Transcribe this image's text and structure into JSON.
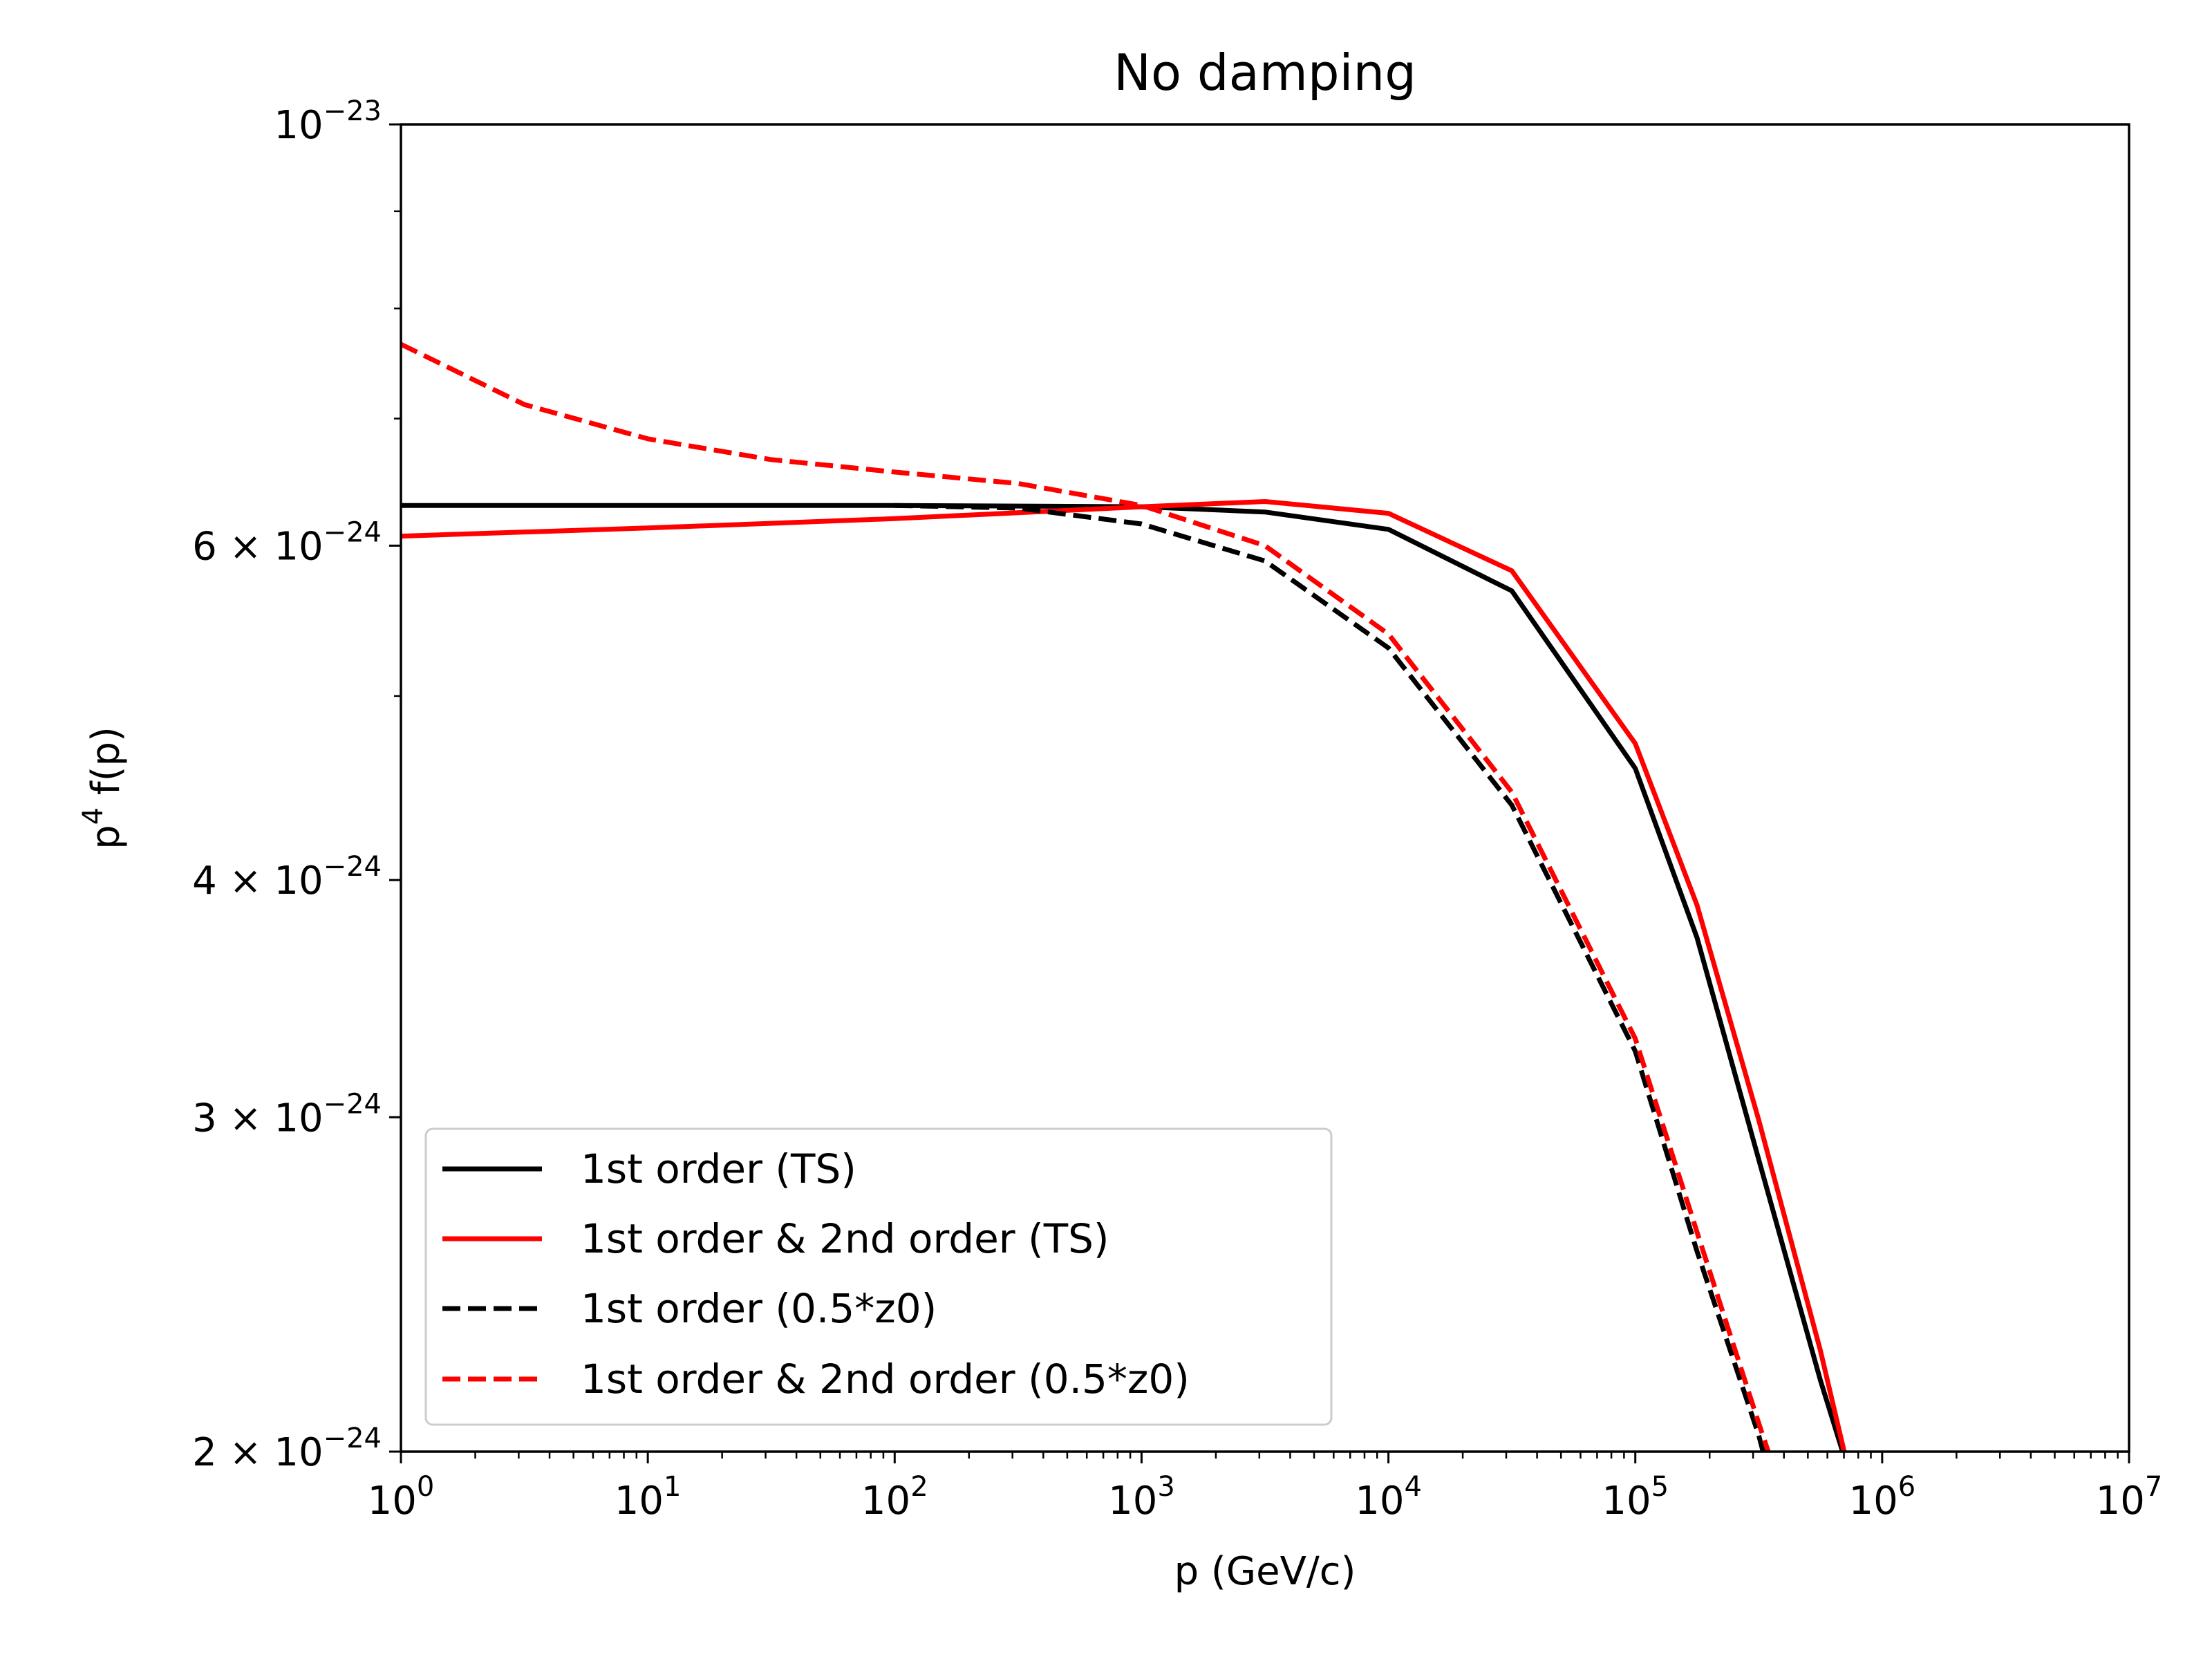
{
  "chart_data": {
    "type": "line",
    "title": "No damping",
    "xlabel": "p (GeV/c)",
    "ylabel_base": "p",
    "ylabel_sup": "4",
    "ylabel_rest": " f(p)",
    "xscale": "log",
    "yscale": "log",
    "xlim": [
      1,
      10000000
    ],
    "ylim": [
      2e-24,
      1e-23
    ],
    "grid": false,
    "legend_position": "lower-left",
    "x_ticks": [
      {
        "value": 1,
        "base": "10",
        "exp": "0"
      },
      {
        "value": 10,
        "base": "10",
        "exp": "1"
      },
      {
        "value": 100,
        "base": "10",
        "exp": "2"
      },
      {
        "value": 1000,
        "base": "10",
        "exp": "3"
      },
      {
        "value": 10000,
        "base": "10",
        "exp": "4"
      },
      {
        "value": 100000,
        "base": "10",
        "exp": "5"
      },
      {
        "value": 1000000,
        "base": "10",
        "exp": "6"
      },
      {
        "value": 10000000,
        "base": "10",
        "exp": "7"
      }
    ],
    "y_ticks": [
      {
        "value": 1e-23,
        "mant": "",
        "base": "10",
        "exp": "−23"
      },
      {
        "value": 6e-24,
        "mant": "6 × ",
        "base": "10",
        "exp": "−24"
      },
      {
        "value": 4e-24,
        "mant": "4 × ",
        "base": "10",
        "exp": "−24"
      },
      {
        "value": 3e-24,
        "mant": "3 × ",
        "base": "10",
        "exp": "−24"
      },
      {
        "value": 2e-24,
        "mant": "2 × ",
        "base": "10",
        "exp": "−24"
      }
    ],
    "y_minor_ticks": [
      5e-24,
      7e-24,
      8e-24,
      9e-24
    ],
    "series": [
      {
        "name": "1st order (TS)",
        "color": "#000000",
        "dash": "solid",
        "x": [
          1,
          100,
          1000,
          3162,
          10000,
          31623,
          100000,
          177828,
          316228,
          562341,
          707946
        ],
        "y": [
          6.3e-24,
          6.3e-24,
          6.29e-24,
          6.25e-24,
          6.12e-24,
          5.68e-24,
          4.58e-24,
          3.73e-24,
          2.85e-24,
          2.18e-24,
          1.98e-24
        ]
      },
      {
        "name": "1st order & 2nd order (TS)",
        "color": "#ff0000",
        "dash": "solid",
        "x": [
          1,
          10,
          100,
          1000,
          3162,
          10000,
          31623,
          100000,
          177828,
          316228,
          562341,
          707946
        ],
        "y": [
          6.07e-24,
          6.13e-24,
          6.2e-24,
          6.29e-24,
          6.33e-24,
          6.24e-24,
          5.82e-24,
          4.72e-24,
          3.88e-24,
          2.99e-24,
          2.26e-24,
          1.99e-24
        ]
      },
      {
        "name": "1st order (0.5*z0)",
        "color": "#000000",
        "dash": "dashed",
        "x": [
          100,
          316,
          1000,
          3162,
          10000,
          31623,
          100000,
          177828,
          316228,
          336000
        ],
        "y": [
          6.3e-24,
          6.28e-24,
          6.16e-24,
          5.89e-24,
          5.3e-24,
          4.38e-24,
          3.25e-24,
          2.55e-24,
          2.04e-24,
          1.98e-24
        ]
      },
      {
        "name": "1st order & 2nd order (0.5*z0)",
        "color": "#ff0000",
        "dash": "dashed",
        "x": [
          1,
          3.16,
          10,
          31.6,
          100,
          316,
          1000,
          3162,
          10000,
          31623,
          100000,
          177828,
          316228,
          354813
        ],
        "y": [
          7.66e-24,
          7.12e-24,
          6.83e-24,
          6.66e-24,
          6.56e-24,
          6.47e-24,
          6.3e-24,
          6e-24,
          5.39e-24,
          4.45e-24,
          3.3e-24,
          2.61e-24,
          2.07e-24,
          1.98e-24
        ]
      }
    ]
  }
}
